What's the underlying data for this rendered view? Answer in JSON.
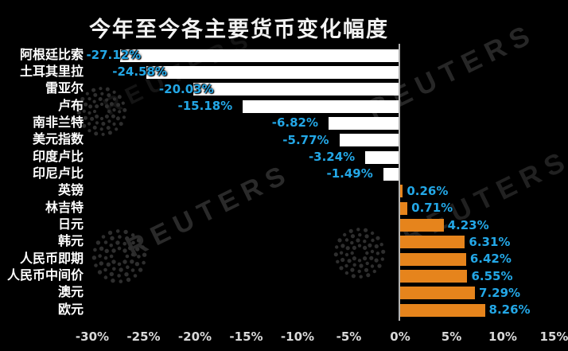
{
  "title": "今年至今各主要货币变化幅度",
  "watermark": {
    "brand": "REUTERS"
  },
  "colors": {
    "background": "#000000",
    "negative_bar": "#ffffff",
    "positive_bar": "#e6841c",
    "value_label": "#23a7e6",
    "category_label": "#ffffff",
    "axis_label": "#d9d9d9",
    "zero_line": "#b2b2b2",
    "title": "#f2f2f2",
    "watermark": "#2e2e2e"
  },
  "chart_data": {
    "type": "bar",
    "orientation": "horizontal",
    "title": "今年至今各主要货币变化幅度",
    "categories": [
      "阿根廷比索",
      "土耳其里拉",
      "雷亚尔",
      "卢布",
      "南非兰特",
      "美元指数",
      "印度卢比",
      "印尼卢比",
      "英镑",
      "林吉特",
      "日元",
      "韩元",
      "人民币即期",
      "人民币中间价",
      "澳元",
      "欧元"
    ],
    "values": [
      -27.12,
      -24.58,
      -20.03,
      -15.18,
      -6.82,
      -5.77,
      -3.24,
      -1.49,
      0.26,
      0.71,
      4.23,
      6.31,
      6.42,
      6.55,
      7.29,
      8.26
    ],
    "value_labels": [
      "-27.12%",
      "-24.58%",
      "-20.03%",
      "-15.18%",
      "-6.82%",
      "-5.77%",
      "-3.24%",
      "-1.49%",
      "0.26%",
      "0.71%",
      "4.23%",
      "6.31%",
      "6.42%",
      "6.55%",
      "7.29%",
      "8.26%"
    ],
    "xlabel": "",
    "ylabel": "",
    "xlim": [
      -30,
      15
    ],
    "x_tick_values": [
      -30,
      -25,
      -20,
      -15,
      -10,
      -5,
      0,
      5,
      10,
      15
    ],
    "x_ticks": [
      "-30%",
      "-25%",
      "-20%",
      "-15%",
      "-10%",
      "-5%",
      "0%",
      "5%",
      "10%",
      "15%"
    ],
    "grid": false,
    "legend": false
  }
}
